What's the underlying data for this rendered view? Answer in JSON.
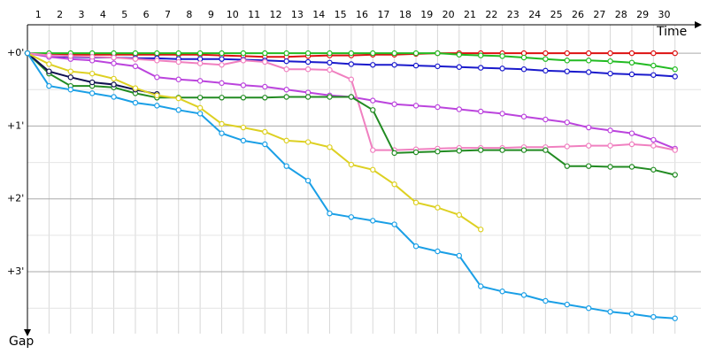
{
  "chart_data": {
    "type": "line",
    "x_label": "Time",
    "y_label": "Gap",
    "x": [
      0,
      1,
      2,
      3,
      4,
      5,
      6,
      7,
      8,
      9,
      10,
      11,
      12,
      13,
      14,
      15,
      16,
      17,
      18,
      19,
      20,
      21,
      22,
      23,
      24,
      25,
      26,
      27,
      28,
      29,
      30
    ],
    "xlim": [
      0,
      31.2
    ],
    "xticks": [
      1,
      2,
      3,
      4,
      5,
      6,
      7,
      8,
      9,
      10,
      11,
      12,
      13,
      14,
      15,
      16,
      17,
      18,
      19,
      20,
      21,
      22,
      23,
      24,
      25,
      26,
      27,
      28,
      29,
      30
    ],
    "ylim": [
      -0.39,
      3.85
    ],
    "yticks": [
      {
        "value": 0,
        "label": "+0'"
      },
      {
        "value": 1,
        "label": "+1'"
      },
      {
        "value": 2,
        "label": "+2'"
      },
      {
        "value": 3,
        "label": "+3'"
      }
    ],
    "minor_yticks": [
      0.5,
      1.5,
      2.5,
      3.5
    ],
    "grid": true,
    "series": [
      {
        "color": "#dd1111",
        "values": [
          0,
          0.02,
          0.02,
          0.02,
          0.02,
          0.02,
          0.02,
          0.02,
          0.02,
          0.03,
          0.04,
          0.05,
          0.05,
          0.04,
          0.03,
          0.03,
          0.02,
          0.02,
          0.01,
          0,
          0,
          0,
          0,
          0,
          0,
          0,
          0,
          0,
          0,
          0,
          0
        ]
      },
      {
        "color": "#22bb22",
        "values": [
          0,
          0,
          0,
          0,
          0,
          0,
          0,
          0,
          0,
          0,
          0,
          0,
          0,
          0,
          0,
          0,
          0,
          0,
          0,
          0,
          0.02,
          0.03,
          0.04,
          0.06,
          0.08,
          0.1,
          0.1,
          0.11,
          0.13,
          0.17,
          0.22
        ]
      },
      {
        "color": "#1a1acc",
        "values": [
          0,
          0.04,
          0.05,
          0.06,
          0.06,
          0.07,
          0.07,
          0.08,
          0.08,
          0.08,
          0.09,
          0.1,
          0.11,
          0.12,
          0.13,
          0.15,
          0.16,
          0.16,
          0.17,
          0.18,
          0.19,
          0.2,
          0.21,
          0.22,
          0.24,
          0.25,
          0.26,
          0.28,
          0.29,
          0.3,
          0.32
        ]
      },
      {
        "color": "#bb44dd",
        "values": [
          0,
          0.05,
          0.08,
          0.1,
          0.14,
          0.18,
          0.33,
          0.36,
          0.38,
          0.41,
          0.44,
          0.46,
          0.5,
          0.54,
          0.58,
          0.6,
          0.65,
          0.7,
          0.72,
          0.74,
          0.77,
          0.8,
          0.83,
          0.87,
          0.91,
          0.95,
          1.02,
          1.06,
          1.1,
          1.19,
          1.31
        ]
      },
      {
        "color": "#f080c0",
        "values": [
          0,
          0.03,
          0.04,
          0.05,
          0.06,
          0.08,
          0.1,
          0.12,
          0.14,
          0.16,
          0.1,
          0.12,
          0.22,
          0.22,
          0.23,
          0.36,
          1.33,
          1.33,
          1.32,
          1.31,
          1.3,
          1.3,
          1.3,
          1.29,
          1.29,
          1.28,
          1.27,
          1.27,
          1.25,
          1.27,
          1.33
        ]
      },
      {
        "color": "#228b22",
        "values": [
          0,
          0.28,
          0.45,
          0.45,
          0.47,
          0.55,
          0.61,
          0.61,
          0.61,
          0.61,
          0.61,
          0.61,
          0.6,
          0.6,
          0.6,
          0.6,
          0.78,
          1.37,
          1.36,
          1.35,
          1.34,
          1.33,
          1.33,
          1.33,
          1.33,
          1.55,
          1.55,
          1.56,
          1.56,
          1.6,
          1.67
        ]
      },
      {
        "color": "#101050",
        "values": [
          0,
          0.25,
          0.33,
          0.4,
          0.43,
          0.5,
          0.56,
          null,
          null,
          null,
          null,
          null,
          null,
          null,
          null,
          null,
          null,
          null,
          null,
          null,
          null,
          null,
          null,
          null,
          null,
          null,
          null,
          null,
          null,
          null,
          null
        ]
      },
      {
        "color": "#ddd022",
        "values": [
          0,
          0.15,
          0.25,
          0.28,
          0.35,
          0.48,
          0.58,
          0.62,
          0.75,
          0.97,
          1.02,
          1.08,
          1.2,
          1.22,
          1.29,
          1.53,
          1.6,
          1.8,
          2.05,
          2.12,
          2.22,
          2.42,
          null,
          null,
          null,
          null,
          null,
          null,
          null,
          null,
          null
        ]
      },
      {
        "color": "#1a9fe6",
        "values": [
          0,
          0.45,
          0.5,
          0.55,
          0.6,
          0.68,
          0.72,
          0.78,
          0.83,
          1.1,
          1.2,
          1.25,
          1.55,
          1.75,
          2.2,
          2.25,
          2.3,
          2.35,
          2.65,
          2.72,
          2.78,
          3.2,
          3.27,
          3.32,
          3.4,
          3.45,
          3.5,
          3.55,
          3.58,
          3.62,
          3.64
        ]
      }
    ]
  }
}
